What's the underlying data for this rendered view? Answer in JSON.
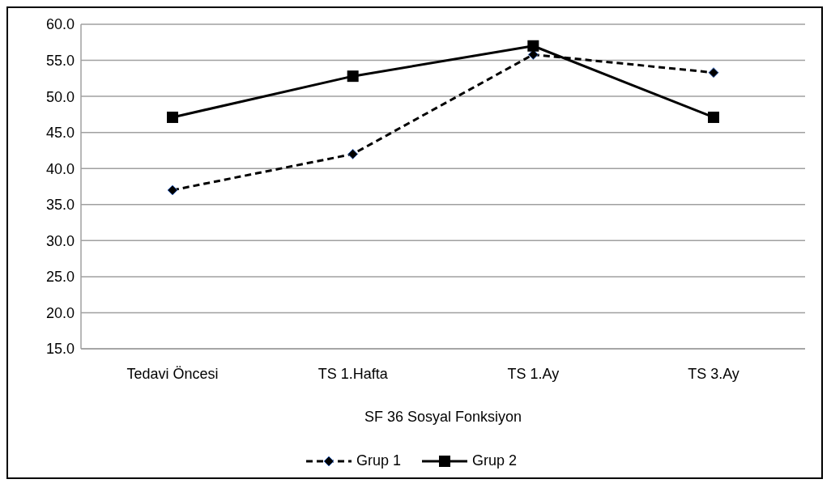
{
  "chart_data": {
    "type": "line",
    "categories": [
      "Tedavi Öncesi",
      "TS 1.Hafta",
      "TS 1.Ay",
      "TS 3.Ay"
    ],
    "xlabel": "SF 36 Sosyal Fonksiyon",
    "series": [
      {
        "name": "Grup 1",
        "color": "#000000",
        "values": [
          37.0,
          42.0,
          55.8,
          53.3
        ],
        "marker": "diamond",
        "line_style": "dashed"
      },
      {
        "name": "Grup 2",
        "color": "#000000",
        "values": [
          47.1,
          52.8,
          57.0,
          47.1
        ],
        "marker": "square",
        "line_style": "solid"
      }
    ],
    "ylim": [
      15,
      60
    ],
    "yticks": [
      {
        "value": 15,
        "label": "15.0"
      },
      {
        "value": 20,
        "label": "20.0"
      },
      {
        "value": 25,
        "label": "25.0"
      },
      {
        "value": 30,
        "label": "30.0"
      },
      {
        "value": 35,
        "label": "35.0"
      },
      {
        "value": 40,
        "label": "40.0"
      },
      {
        "value": 45,
        "label": "45.0"
      },
      {
        "value": 50,
        "label": "50.0"
      },
      {
        "value": 55,
        "label": "55.0"
      },
      {
        "value": 60,
        "label": "60.0"
      }
    ],
    "grid": "y",
    "legend": "bottom"
  }
}
